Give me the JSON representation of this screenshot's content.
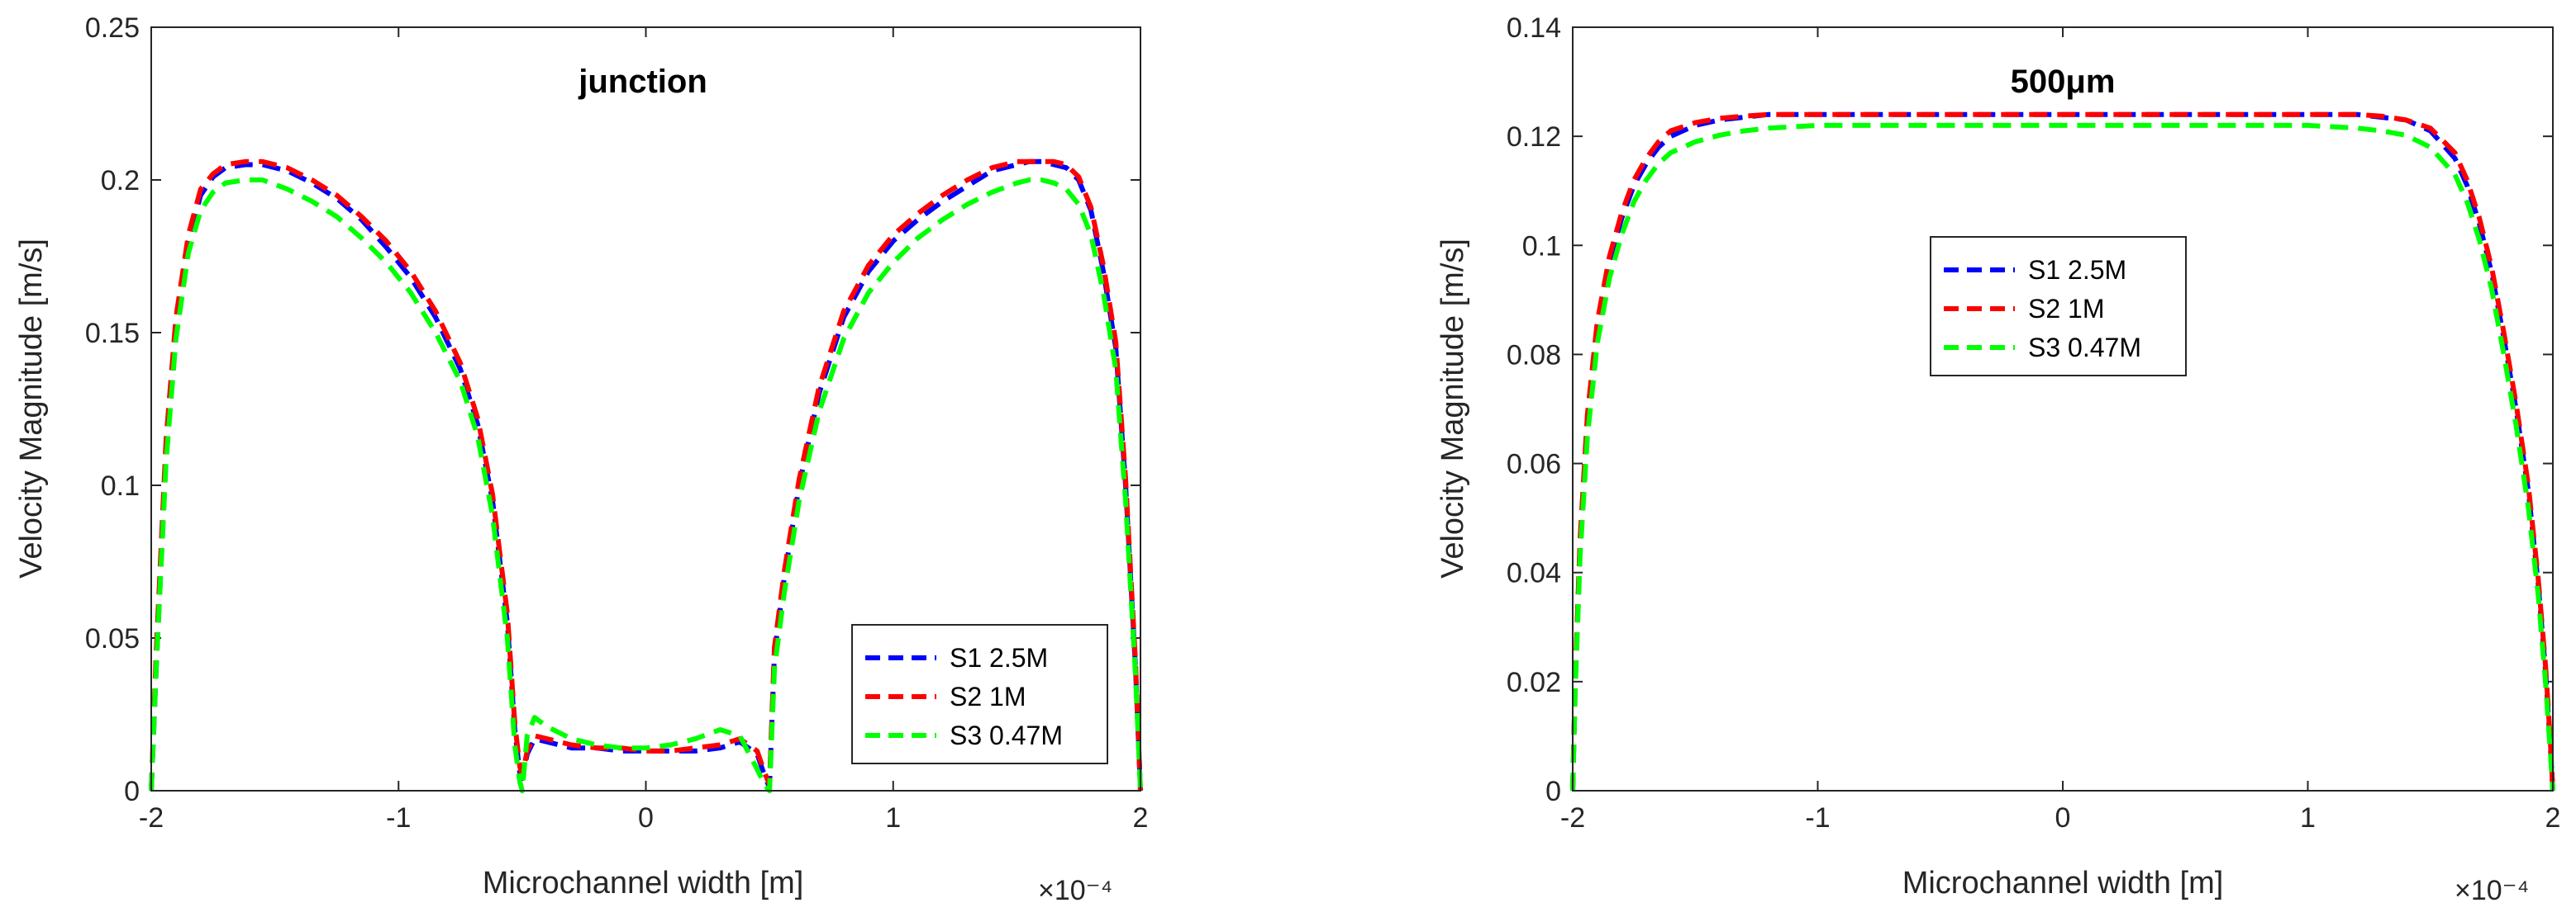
{
  "chart_data": [
    {
      "type": "line",
      "title": "junction",
      "xlabel": "Microchannel width [m]",
      "ylabel": "Velocity Magnitude [m/s]",
      "x_multiplier": "×10⁻⁴",
      "xlim": [
        -2,
        2
      ],
      "ylim": [
        0,
        0.25
      ],
      "xticks": [
        -2,
        -1,
        0,
        1,
        2
      ],
      "xtick_labels": [
        "-2",
        "-1",
        "0",
        "1",
        "2"
      ],
      "yticks": [
        0,
        0.05,
        0.1,
        0.15,
        0.2,
        0.25
      ],
      "ytick_labels": [
        "0",
        "0.05",
        "0.1",
        "0.15",
        "0.2",
        "0.25"
      ],
      "legend_position": "bottom-right",
      "series": [
        {
          "name": "S1 2.5M",
          "color": "#0000ff",
          "x": [
            -2.0,
            -1.98,
            -1.94,
            -1.9,
            -1.85,
            -1.8,
            -1.75,
            -1.7,
            -1.62,
            -1.55,
            -1.45,
            -1.35,
            -1.25,
            -1.15,
            -1.05,
            -0.95,
            -0.85,
            -0.75,
            -0.68,
            -0.62,
            -0.56,
            -0.53,
            -0.51,
            -0.5,
            -0.48,
            -0.45,
            -0.4,
            -0.3,
            -0.2,
            -0.1,
            0.0,
            0.1,
            0.2,
            0.3,
            0.38,
            0.45,
            0.48,
            0.5,
            0.52,
            0.56,
            0.62,
            0.7,
            0.8,
            0.9,
            1.0,
            1.1,
            1.2,
            1.3,
            1.4,
            1.5,
            1.55,
            1.6,
            1.65,
            1.7,
            1.75,
            1.8,
            1.85,
            1.9,
            1.94,
            1.98,
            2.0
          ],
          "y": [
            0.0,
            0.04,
            0.11,
            0.15,
            0.18,
            0.195,
            0.201,
            0.204,
            0.205,
            0.205,
            0.203,
            0.199,
            0.194,
            0.187,
            0.178,
            0.168,
            0.155,
            0.138,
            0.12,
            0.095,
            0.055,
            0.02,
            0.006,
            0.004,
            0.012,
            0.017,
            0.016,
            0.014,
            0.014,
            0.013,
            0.013,
            0.013,
            0.013,
            0.014,
            0.016,
            0.012,
            0.005,
            0.001,
            0.045,
            0.07,
            0.1,
            0.13,
            0.155,
            0.17,
            0.18,
            0.187,
            0.193,
            0.198,
            0.203,
            0.205,
            0.206,
            0.206,
            0.205,
            0.204,
            0.2,
            0.19,
            0.17,
            0.145,
            0.1,
            0.04,
            0.0
          ]
        },
        {
          "name": "S2 1M",
          "color": "#ff0000",
          "x": [
            -2.0,
            -1.98,
            -1.94,
            -1.9,
            -1.85,
            -1.8,
            -1.75,
            -1.7,
            -1.62,
            -1.55,
            -1.45,
            -1.35,
            -1.25,
            -1.15,
            -1.05,
            -0.95,
            -0.85,
            -0.75,
            -0.68,
            -0.62,
            -0.56,
            -0.53,
            -0.51,
            -0.5,
            -0.48,
            -0.45,
            -0.4,
            -0.3,
            -0.2,
            -0.1,
            0.0,
            0.1,
            0.2,
            0.3,
            0.38,
            0.45,
            0.48,
            0.5,
            0.52,
            0.56,
            0.62,
            0.7,
            0.8,
            0.9,
            1.0,
            1.1,
            1.2,
            1.3,
            1.4,
            1.5,
            1.55,
            1.6,
            1.65,
            1.7,
            1.75,
            1.8,
            1.85,
            1.9,
            1.94,
            1.98,
            2.0
          ],
          "y": [
            0.0,
            0.045,
            0.115,
            0.155,
            0.182,
            0.197,
            0.202,
            0.205,
            0.206,
            0.206,
            0.204,
            0.2,
            0.195,
            0.188,
            0.18,
            0.17,
            0.157,
            0.14,
            0.122,
            0.097,
            0.058,
            0.022,
            0.008,
            0.005,
            0.013,
            0.018,
            0.017,
            0.015,
            0.014,
            0.014,
            0.013,
            0.013,
            0.014,
            0.015,
            0.017,
            0.013,
            0.006,
            0.002,
            0.047,
            0.072,
            0.102,
            0.132,
            0.157,
            0.172,
            0.182,
            0.189,
            0.195,
            0.2,
            0.204,
            0.206,
            0.206,
            0.206,
            0.206,
            0.205,
            0.201,
            0.191,
            0.172,
            0.147,
            0.102,
            0.042,
            0.0
          ]
        },
        {
          "name": "S3 0.47M",
          "color": "#00ff00",
          "x": [
            -2.0,
            -1.98,
            -1.94,
            -1.9,
            -1.85,
            -1.8,
            -1.75,
            -1.7,
            -1.62,
            -1.55,
            -1.45,
            -1.35,
            -1.25,
            -1.15,
            -1.05,
            -0.95,
            -0.85,
            -0.75,
            -0.68,
            -0.62,
            -0.56,
            -0.53,
            -0.51,
            -0.5,
            -0.48,
            -0.45,
            -0.4,
            -0.3,
            -0.2,
            -0.1,
            0.0,
            0.1,
            0.2,
            0.3,
            0.38,
            0.45,
            0.48,
            0.5,
            0.52,
            0.56,
            0.62,
            0.7,
            0.8,
            0.9,
            1.0,
            1.1,
            1.2,
            1.3,
            1.4,
            1.5,
            1.55,
            1.6,
            1.65,
            1.7,
            1.75,
            1.8,
            1.85,
            1.9,
            1.94,
            1.98,
            2.0
          ],
          "y": [
            0.0,
            0.04,
            0.108,
            0.148,
            0.176,
            0.19,
            0.196,
            0.199,
            0.2,
            0.2,
            0.197,
            0.193,
            0.188,
            0.181,
            0.173,
            0.163,
            0.15,
            0.134,
            0.116,
            0.09,
            0.05,
            0.015,
            0.003,
            0.0,
            0.018,
            0.024,
            0.021,
            0.017,
            0.015,
            0.014,
            0.014,
            0.015,
            0.017,
            0.02,
            0.018,
            0.007,
            0.002,
            0.0,
            0.04,
            0.065,
            0.095,
            0.124,
            0.148,
            0.163,
            0.173,
            0.181,
            0.187,
            0.192,
            0.196,
            0.199,
            0.2,
            0.2,
            0.199,
            0.197,
            0.192,
            0.182,
            0.163,
            0.138,
            0.095,
            0.038,
            0.0
          ]
        }
      ]
    },
    {
      "type": "line",
      "title": "500μm",
      "xlabel": "Microchannel width [m]",
      "ylabel": "Velocity Magnitude [m/s]",
      "x_multiplier": "×10⁻⁴",
      "xlim": [
        -2,
        2
      ],
      "ylim": [
        0,
        0.14
      ],
      "xticks": [
        -2,
        -1,
        0,
        1,
        2
      ],
      "xtick_labels": [
        "-2",
        "-1",
        "0",
        "1",
        "2"
      ],
      "yticks": [
        0,
        0.02,
        0.04,
        0.06,
        0.08,
        0.1,
        0.12,
        0.14
      ],
      "ytick_labels": [
        "0",
        "0.02",
        "0.04",
        "0.06",
        "0.08",
        "0.1",
        "0.12",
        "0.14"
      ],
      "legend_position": "center",
      "series": [
        {
          "name": "S1 2.5M",
          "color": "#0000ff",
          "x": [
            -2.0,
            -1.99,
            -1.97,
            -1.94,
            -1.9,
            -1.85,
            -1.8,
            -1.75,
            -1.7,
            -1.65,
            -1.6,
            -1.5,
            -1.4,
            -1.3,
            -1.2,
            -1.0,
            -0.5,
            0.0,
            0.5,
            1.0,
            1.2,
            1.3,
            1.4,
            1.5,
            1.6,
            1.65,
            1.7,
            1.75,
            1.8,
            1.85,
            1.9,
            1.94,
            1.97,
            1.99,
            2.0
          ],
          "y": [
            0.0,
            0.02,
            0.045,
            0.068,
            0.085,
            0.097,
            0.105,
            0.111,
            0.115,
            0.118,
            0.12,
            0.122,
            0.123,
            0.1235,
            0.124,
            0.124,
            0.124,
            0.124,
            0.124,
            0.124,
            0.124,
            0.1235,
            0.123,
            0.121,
            0.116,
            0.111,
            0.104,
            0.095,
            0.083,
            0.07,
            0.055,
            0.038,
            0.022,
            0.008,
            0.0
          ]
        },
        {
          "name": "S2 1M",
          "color": "#ff0000",
          "x": [
            -2.0,
            -1.99,
            -1.97,
            -1.94,
            -1.9,
            -1.85,
            -1.8,
            -1.75,
            -1.7,
            -1.65,
            -1.6,
            -1.5,
            -1.4,
            -1.3,
            -1.2,
            -1.0,
            -0.5,
            0.0,
            0.5,
            1.0,
            1.2,
            1.3,
            1.4,
            1.5,
            1.6,
            1.65,
            1.7,
            1.75,
            1.8,
            1.85,
            1.9,
            1.94,
            1.97,
            1.99,
            2.0
          ],
          "y": [
            0.0,
            0.02,
            0.046,
            0.069,
            0.086,
            0.098,
            0.106,
            0.112,
            0.116,
            0.119,
            0.121,
            0.1225,
            0.1233,
            0.1237,
            0.124,
            0.124,
            0.124,
            0.124,
            0.124,
            0.124,
            0.124,
            0.1237,
            0.123,
            0.1215,
            0.117,
            0.112,
            0.105,
            0.096,
            0.084,
            0.071,
            0.056,
            0.039,
            0.023,
            0.009,
            0.0
          ]
        },
        {
          "name": "S3 0.47M",
          "color": "#00ff00",
          "x": [
            -2.0,
            -1.99,
            -1.97,
            -1.94,
            -1.9,
            -1.85,
            -1.8,
            -1.75,
            -1.7,
            -1.65,
            -1.6,
            -1.5,
            -1.4,
            -1.3,
            -1.2,
            -1.0,
            -0.5,
            0.0,
            0.5,
            1.0,
            1.2,
            1.3,
            1.4,
            1.5,
            1.6,
            1.65,
            1.7,
            1.75,
            1.8,
            1.85,
            1.9,
            1.94,
            1.97,
            1.99,
            2.0
          ],
          "y": [
            0.0,
            0.018,
            0.043,
            0.065,
            0.082,
            0.094,
            0.102,
            0.108,
            0.112,
            0.115,
            0.117,
            0.119,
            0.1202,
            0.121,
            0.1215,
            0.122,
            0.122,
            0.122,
            0.122,
            0.122,
            0.1215,
            0.121,
            0.1202,
            0.118,
            0.113,
            0.108,
            0.101,
            0.092,
            0.08,
            0.067,
            0.052,
            0.036,
            0.02,
            0.007,
            0.0
          ]
        }
      ]
    }
  ]
}
